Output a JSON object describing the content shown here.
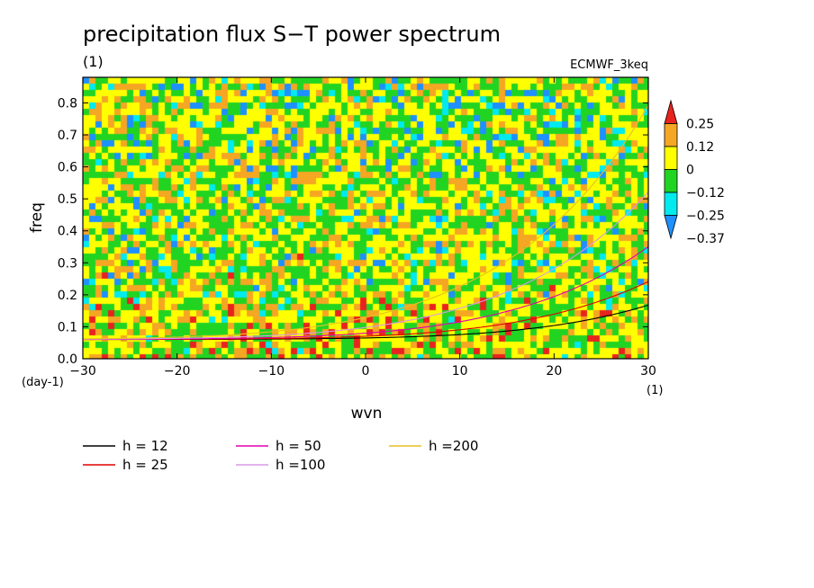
{
  "chart_data": {
    "type": "heatmap",
    "title": "precipitation flux S−T power spectrum",
    "units_label": "(1)",
    "model": "ECMWF_3keq",
    "xlabel": "wvn",
    "ylabel": "freq",
    "x_units": "(1)",
    "y_units": "(day-1)",
    "xlim": [
      -30,
      30
    ],
    "ylim": [
      0,
      0.88
    ],
    "x_ticks": [
      -30,
      -20,
      -10,
      0,
      10,
      20,
      30
    ],
    "y_ticks": [
      0.0,
      0.1,
      0.2,
      0.3,
      0.4,
      0.5,
      0.6,
      0.7,
      0.8
    ],
    "x_tick_labels": [
      "−30",
      "−20",
      "−10",
      "0",
      "10",
      "20",
      "30"
    ],
    "y_tick_labels": [
      "0.0",
      "0.1",
      "0.2",
      "0.3",
      "0.4",
      "0.5",
      "0.6",
      "0.7",
      "0.8"
    ],
    "colorbar": {
      "levels": [
        0.25,
        0.12,
        0,
        -0.12,
        -0.25,
        -0.37
      ],
      "labels": [
        "0.25",
        "0.12",
        "0",
        "−0.12",
        "−0.25",
        "−0.37"
      ],
      "colors": [
        "#e8231e",
        "#f5a623",
        "#ffff00",
        "#22d422",
        "#00eaf0",
        "#1e90ff"
      ]
    },
    "dispersion_curves": [
      {
        "name": "h = 12",
        "h": 12,
        "color": "#000000"
      },
      {
        "name": "h = 25",
        "h": 25,
        "color": "#e00000"
      },
      {
        "name": "h = 50",
        "h": 50,
        "color": "#e000b0"
      },
      {
        "name": "h =100",
        "h": 100,
        "color": "#d898e8"
      },
      {
        "name": "h =200",
        "h": 200,
        "color": "#e8c020"
      }
    ]
  }
}
